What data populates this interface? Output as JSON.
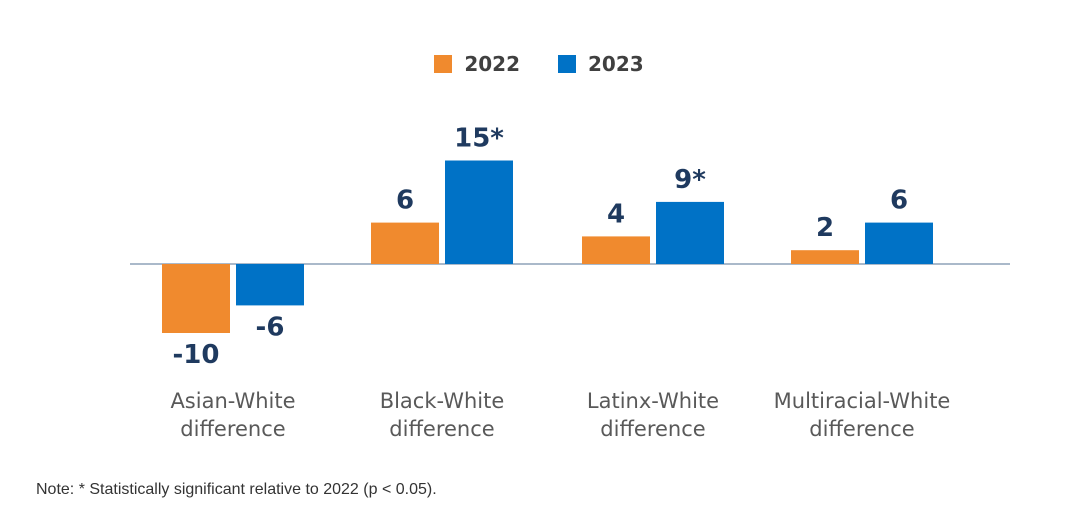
{
  "chart_data": {
    "type": "bar",
    "categories": [
      "Asian-White difference",
      "Black-White difference",
      "Latinx-White difference",
      "Multiracial-White difference"
    ],
    "category_lines": [
      [
        "Asian-White",
        "difference"
      ],
      [
        "Black-White",
        "difference"
      ],
      [
        "Latinx-White",
        "difference"
      ],
      [
        "Multiracial-White",
        "difference"
      ]
    ],
    "series": [
      {
        "name": "2022",
        "color": "#F08A2E",
        "values": [
          -10,
          6,
          4,
          2
        ],
        "labels": [
          "-10",
          "6",
          "4",
          "2"
        ]
      },
      {
        "name": "2023",
        "color": "#0072C6",
        "values": [
          -6,
          15,
          9,
          6
        ],
        "labels": [
          "-6",
          "15*",
          "9*",
          "6"
        ]
      }
    ],
    "ylim": [
      -12,
      16
    ],
    "grid": false,
    "legend_position": "top-center",
    "data_label_color": "#1F3A5F",
    "axis_color": "#8EA2B8",
    "category_label_color": "#595959"
  },
  "note": "Note: * Statistically significant relative to 2022 (p < 0.05)."
}
